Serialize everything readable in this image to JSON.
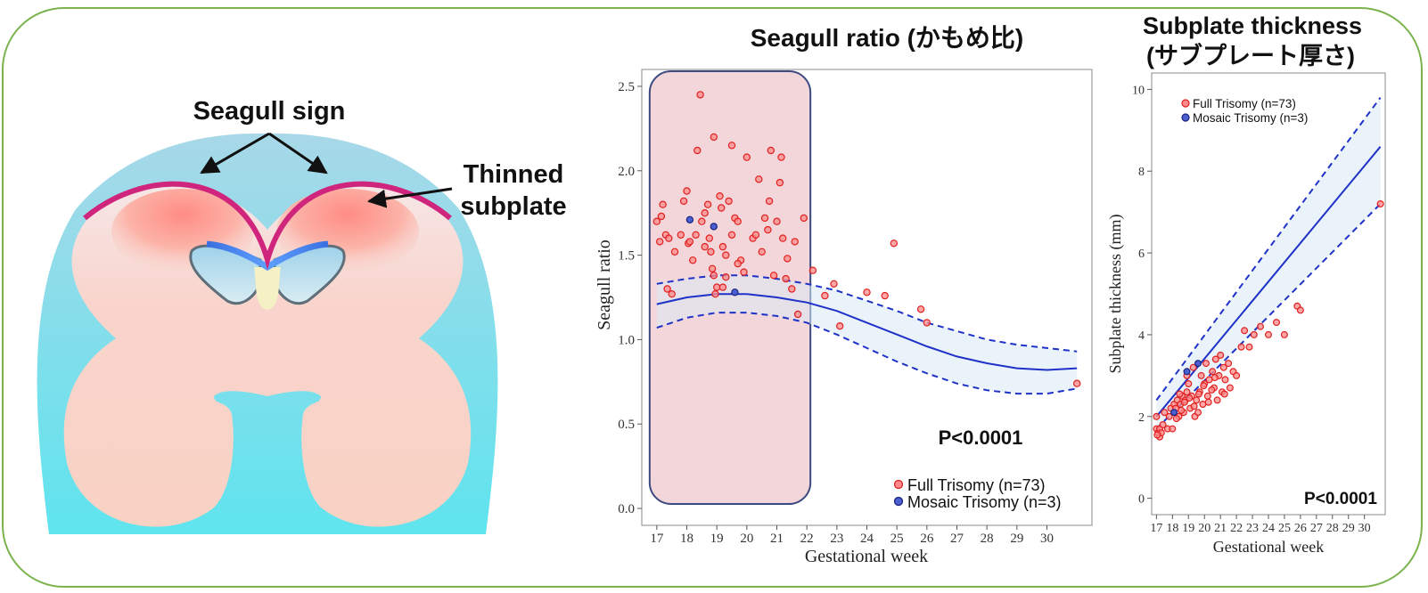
{
  "diagram": {
    "seagull_sign_label": "Seagull sign",
    "thinned_label_line1": "Thinned",
    "thinned_label_line2": "subplate"
  },
  "chart_data": [
    {
      "type": "scatter",
      "title": "Seagull ratio (かもめ比)",
      "xlabel": "Gestational week",
      "ylabel": "Seagull ratio",
      "xlim": [
        16.5,
        31.5
      ],
      "ylim": [
        -0.1,
        2.6
      ],
      "xticks": [
        17,
        18,
        19,
        20,
        21,
        22,
        23,
        24,
        25,
        26,
        27,
        28,
        29,
        30
      ],
      "yticks": [
        "0.0",
        "0.5",
        "1.0",
        "1.5",
        "2.0",
        "2.5"
      ],
      "highlight_range": [
        17,
        22
      ],
      "p_value": "P<0.0001",
      "legend": [
        "Full Trisomy (n=73)",
        "Mosaic Trisomy (n=3)"
      ],
      "series": [
        {
          "name": "Full Trisomy (n=73)",
          "color": "#ff3b3b",
          "points": [
            [
              17.0,
              1.7
            ],
            [
              17.1,
              1.58
            ],
            [
              17.15,
              1.73
            ],
            [
              17.3,
              1.62
            ],
            [
              17.2,
              1.8
            ],
            [
              17.4,
              1.6
            ],
            [
              17.35,
              1.3
            ],
            [
              17.5,
              1.27
            ],
            [
              17.6,
              1.52
            ],
            [
              17.8,
              1.62
            ],
            [
              17.9,
              1.82
            ],
            [
              18.0,
              1.88
            ],
            [
              18.05,
              1.57
            ],
            [
              18.1,
              1.58
            ],
            [
              18.2,
              1.47
            ],
            [
              18.3,
              1.62
            ],
            [
              18.35,
              2.12
            ],
            [
              18.45,
              2.45
            ],
            [
              18.5,
              1.7
            ],
            [
              18.6,
              1.75
            ],
            [
              18.7,
              1.8
            ],
            [
              18.75,
              1.6
            ],
            [
              18.8,
              1.52
            ],
            [
              18.85,
              1.42
            ],
            [
              18.9,
              1.38
            ],
            [
              18.95,
              1.27
            ],
            [
              19.0,
              1.31
            ],
            [
              18.9,
              2.2
            ],
            [
              19.1,
              1.85
            ],
            [
              19.15,
              1.78
            ],
            [
              19.2,
              1.55
            ],
            [
              19.3,
              1.5
            ],
            [
              19.4,
              1.82
            ],
            [
              19.5,
              1.62
            ],
            [
              19.6,
              1.72
            ],
            [
              19.7,
              1.7
            ],
            [
              19.8,
              1.47
            ],
            [
              19.5,
              2.15
            ],
            [
              19.7,
              1.45
            ],
            [
              19.9,
              1.4
            ],
            [
              20.0,
              2.08
            ],
            [
              20.2,
              1.6
            ],
            [
              20.3,
              1.62
            ],
            [
              20.4,
              1.95
            ],
            [
              20.5,
              1.52
            ],
            [
              20.6,
              1.72
            ],
            [
              20.7,
              1.65
            ],
            [
              20.75,
              1.82
            ],
            [
              20.8,
              2.12
            ],
            [
              20.9,
              1.38
            ],
            [
              21.0,
              1.7
            ],
            [
              21.1,
              1.93
            ],
            [
              21.15,
              2.08
            ],
            [
              21.2,
              1.6
            ],
            [
              21.3,
              1.36
            ],
            [
              21.35,
              1.48
            ],
            [
              21.5,
              1.3
            ],
            [
              21.6,
              1.58
            ],
            [
              21.7,
              1.15
            ],
            [
              21.9,
              1.72
            ],
            [
              22.2,
              1.41
            ],
            [
              22.6,
              1.26
            ],
            [
              22.9,
              1.33
            ],
            [
              23.1,
              1.08
            ],
            [
              24.0,
              1.28
            ],
            [
              24.6,
              1.26
            ],
            [
              24.9,
              1.57
            ],
            [
              25.8,
              1.18
            ],
            [
              26.0,
              1.1
            ],
            [
              31.0,
              0.74
            ],
            [
              19.3,
              1.37
            ],
            [
              19.2,
              1.31
            ],
            [
              18.6,
              1.55
            ]
          ]
        },
        {
          "name": "Mosaic Trisomy (n=3)",
          "color": "#2b3fb8",
          "points": [
            [
              18.1,
              1.71
            ],
            [
              18.9,
              1.67
            ],
            [
              19.6,
              1.28
            ]
          ]
        }
      ],
      "fit": {
        "x": [
          17.0,
          18.0,
          19.0,
          20.0,
          21.0,
          22.0,
          23.0,
          24.0,
          25.0,
          26.0,
          27.0,
          28.0,
          29.0,
          30.0,
          31.0
        ],
        "y": [
          1.21,
          1.25,
          1.27,
          1.27,
          1.25,
          1.22,
          1.17,
          1.1,
          1.03,
          0.96,
          0.9,
          0.86,
          0.83,
          0.82,
          0.83
        ],
        "lo": [
          1.07,
          1.13,
          1.16,
          1.16,
          1.14,
          1.1,
          1.03,
          0.95,
          0.87,
          0.8,
          0.74,
          0.7,
          0.68,
          0.68,
          0.71
        ],
        "hi": [
          1.33,
          1.36,
          1.38,
          1.38,
          1.36,
          1.33,
          1.29,
          1.23,
          1.17,
          1.1,
          1.05,
          1.0,
          0.97,
          0.95,
          0.93
        ]
      }
    },
    {
      "type": "scatter",
      "title_line1": "Subplate thickness",
      "title_line2": "(サブプレート厚さ)",
      "xlabel": "Gestational week",
      "ylabel": "Subplate thickness (mm)",
      "xlim": [
        16.7,
        31.3
      ],
      "ylim": [
        -0.4,
        10.4
      ],
      "xticks": [
        17,
        18,
        19,
        20,
        21,
        22,
        23,
        24,
        25,
        26,
        27,
        28,
        29,
        30
      ],
      "yticks": [
        "0",
        "2",
        "4",
        "6",
        "8",
        "10"
      ],
      "p_value": "P<0.0001",
      "legend": [
        "Full Trisomy (n=73)",
        "Mosaic Trisomy (n=3)"
      ],
      "series": [
        {
          "name": "Full Trisomy (n=73)",
          "color": "#ff3b3b",
          "points": [
            [
              17.0,
              2.0
            ],
            [
              17.0,
              1.7
            ],
            [
              17.1,
              1.6
            ],
            [
              17.2,
              1.5
            ],
            [
              17.2,
              1.7
            ],
            [
              17.3,
              1.6
            ],
            [
              17.4,
              1.8
            ],
            [
              17.5,
              2.1
            ],
            [
              17.7,
              1.7
            ],
            [
              17.8,
              2.0
            ],
            [
              17.9,
              2.2
            ],
            [
              18.0,
              1.7
            ],
            [
              18.1,
              2.3
            ],
            [
              18.2,
              2.2
            ],
            [
              18.3,
              2.4
            ],
            [
              18.4,
              2.0
            ],
            [
              18.5,
              2.3
            ],
            [
              18.6,
              2.5
            ],
            [
              18.7,
              2.1
            ],
            [
              18.8,
              2.4
            ],
            [
              18.9,
              2.6
            ],
            [
              19.0,
              2.8
            ],
            [
              18.9,
              3.0
            ],
            [
              19.1,
              2.2
            ],
            [
              19.2,
              2.5
            ],
            [
              19.3,
              3.2
            ],
            [
              19.4,
              2.0
            ],
            [
              19.5,
              2.4
            ],
            [
              19.6,
              2.1
            ],
            [
              19.7,
              2.6
            ],
            [
              19.8,
              3.0
            ],
            [
              19.9,
              2.3
            ],
            [
              20.0,
              2.8
            ],
            [
              20.1,
              3.3
            ],
            [
              20.2,
              2.5
            ],
            [
              20.3,
              2.9
            ],
            [
              20.5,
              3.1
            ],
            [
              20.6,
              2.7
            ],
            [
              20.7,
              3.4
            ],
            [
              20.8,
              2.4
            ],
            [
              20.9,
              3.0
            ],
            [
              21.0,
              3.5
            ],
            [
              21.1,
              2.6
            ],
            [
              21.2,
              3.2
            ],
            [
              21.3,
              2.9
            ],
            [
              21.5,
              3.3
            ],
            [
              21.6,
              2.7
            ],
            [
              21.8,
              3.1
            ],
            [
              22.0,
              3.0
            ],
            [
              22.3,
              3.7
            ],
            [
              22.5,
              4.1
            ],
            [
              22.8,
              3.7
            ],
            [
              23.1,
              4.0
            ],
            [
              23.5,
              4.2
            ],
            [
              24.0,
              4.0
            ],
            [
              24.5,
              4.3
            ],
            [
              25.0,
              4.0
            ],
            [
              25.8,
              4.7
            ],
            [
              26.0,
              4.6
            ],
            [
              31.0,
              7.2
            ],
            [
              17.05,
              1.55
            ],
            [
              18.25,
              1.95
            ],
            [
              18.55,
              2.15
            ],
            [
              18.75,
              2.35
            ],
            [
              19.05,
              2.45
            ],
            [
              19.35,
              2.25
            ],
            [
              19.65,
              2.55
            ],
            [
              19.95,
              2.75
            ],
            [
              20.25,
              2.35
            ],
            [
              20.45,
              2.65
            ],
            [
              20.65,
              2.95
            ],
            [
              21.25,
              2.55
            ],
            [
              18.45,
              2.55
            ]
          ]
        },
        {
          "name": "Mosaic Trisomy (n=3)",
          "color": "#2b3fb8",
          "points": [
            [
              18.1,
              2.1
            ],
            [
              18.9,
              3.1
            ],
            [
              19.6,
              3.3
            ]
          ]
        }
      ],
      "fit": {
        "x": [
          17.0,
          31.0
        ],
        "y": [
          2.0,
          8.6
        ],
        "lo": [
          1.7,
          7.2
        ],
        "hi": [
          2.4,
          9.8
        ]
      }
    }
  ]
}
